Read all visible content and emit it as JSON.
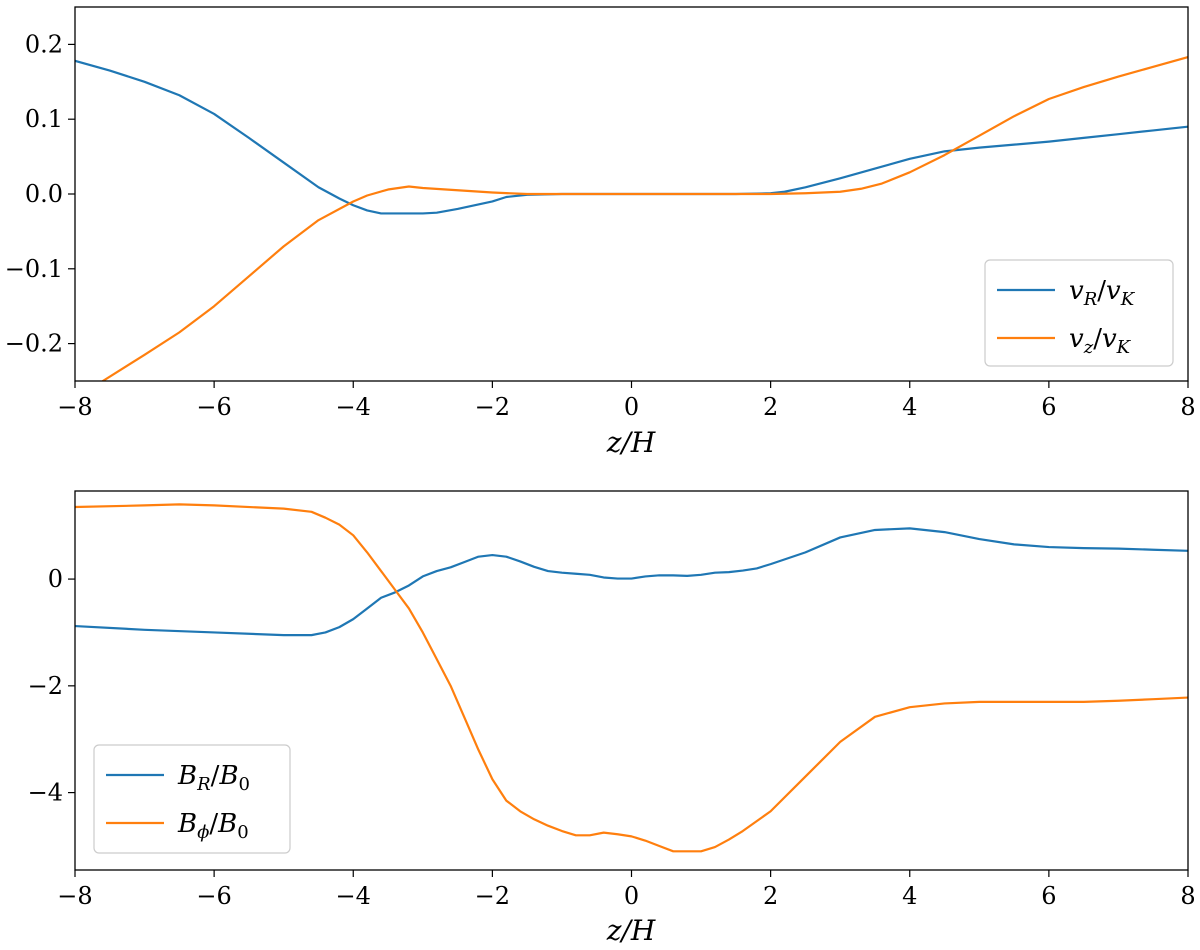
{
  "chart_data": [
    {
      "type": "line",
      "xlabel": "z/H",
      "ylabel": "",
      "xlim": [
        -8,
        8
      ],
      "ylim": [
        -0.25,
        0.25
      ],
      "xticks": [
        -8,
        -6,
        -4,
        -2,
        0,
        2,
        4,
        6,
        8
      ],
      "xtick_labels": [
        "−8",
        "−6",
        "−4",
        "−2",
        "0",
        "2",
        "4",
        "6",
        "8"
      ],
      "yticks": [
        -0.2,
        -0.1,
        0.0,
        0.1,
        0.2
      ],
      "ytick_labels": [
        "−0.2",
        "−0.1",
        "0.0",
        "0.1",
        "0.2"
      ],
      "legend_placement": "lower-right",
      "grid": false,
      "series": [
        {
          "name": "vR/vK",
          "color": "#1f77b4",
          "x": [
            -8,
            -7.5,
            -7,
            -6.5,
            -6,
            -5.5,
            -5,
            -4.5,
            -4.2,
            -4,
            -3.8,
            -3.6,
            -3.4,
            -3.2,
            -3,
            -2.8,
            -2.5,
            -2,
            -1.8,
            -1.5,
            -1,
            -0.5,
            0,
            0.5,
            1,
            1.5,
            2,
            2.2,
            2.5,
            3,
            3.5,
            4,
            4.2,
            4.5,
            5,
            5.5,
            6,
            6.5,
            7,
            7.5,
            8
          ],
          "y": [
            0.178,
            0.165,
            0.15,
            0.132,
            0.107,
            0.075,
            0.042,
            0.009,
            -0.006,
            -0.015,
            -0.022,
            -0.026,
            -0.026,
            -0.026,
            -0.026,
            -0.025,
            -0.02,
            -0.01,
            -0.004,
            -0.001,
            0.0,
            0.0,
            0.0,
            0.0,
            0.0,
            0.0,
            0.001,
            0.003,
            0.009,
            0.021,
            0.034,
            0.047,
            0.051,
            0.057,
            0.062,
            0.066,
            0.07,
            0.075,
            0.08,
            0.085,
            0.09
          ]
        },
        {
          "name": "vz/vK",
          "color": "#ff7f0e",
          "x": [
            -7.6,
            -7,
            -6.5,
            -6,
            -5.5,
            -5,
            -4.5,
            -4,
            -3.8,
            -3.5,
            -3.2,
            -3,
            -2.5,
            -2,
            -1.5,
            -1,
            0,
            1,
            2,
            2.5,
            3,
            3.3,
            3.6,
            4,
            4.5,
            5,
            5.5,
            6,
            6.5,
            7,
            7.5,
            8
          ],
          "y": [
            -0.25,
            -0.215,
            -0.185,
            -0.15,
            -0.11,
            -0.07,
            -0.035,
            -0.01,
            -0.002,
            0.006,
            0.01,
            0.008,
            0.005,
            0.002,
            0.0,
            0.0,
            0.0,
            0.0,
            0.0,
            0.001,
            0.003,
            0.007,
            0.014,
            0.029,
            0.052,
            0.078,
            0.104,
            0.127,
            0.143,
            0.157,
            0.17,
            0.183
          ]
        }
      ]
    },
    {
      "type": "line",
      "xlabel": "z/H",
      "ylabel": "",
      "xlim": [
        -8,
        8
      ],
      "ylim": [
        -5.45,
        1.65
      ],
      "xticks": [
        -8,
        -6,
        -4,
        -2,
        0,
        2,
        4,
        6,
        8
      ],
      "xtick_labels": [
        "−8",
        "−6",
        "−4",
        "−2",
        "0",
        "2",
        "4",
        "6",
        "8"
      ],
      "yticks": [
        -4,
        -2,
        0
      ],
      "ytick_labels": [
        "−4",
        "−2",
        "0"
      ],
      "legend_placement": "lower-left",
      "grid": false,
      "series": [
        {
          "name": "BR/B0",
          "color": "#1f77b4",
          "x": [
            -8,
            -7,
            -6,
            -5,
            -4.6,
            -4.4,
            -4.2,
            -4,
            -3.8,
            -3.6,
            -3.4,
            -3.2,
            -3,
            -2.8,
            -2.6,
            -2.4,
            -2.2,
            -2,
            -1.8,
            -1.6,
            -1.4,
            -1.2,
            -1,
            -0.8,
            -0.6,
            -0.4,
            -0.2,
            0,
            0.2,
            0.4,
            0.6,
            0.8,
            1,
            1.2,
            1.4,
            1.6,
            1.8,
            2,
            2.5,
            3,
            3.5,
            4,
            4.5,
            5,
            5.5,
            6,
            6.5,
            7,
            7.5,
            8
          ],
          "y": [
            -0.88,
            -0.95,
            -1.0,
            -1.05,
            -1.05,
            -1.0,
            -0.9,
            -0.75,
            -0.55,
            -0.35,
            -0.25,
            -0.12,
            0.05,
            0.15,
            0.22,
            0.32,
            0.42,
            0.45,
            0.42,
            0.33,
            0.23,
            0.15,
            0.12,
            0.1,
            0.08,
            0.03,
            0.01,
            0.01,
            0.05,
            0.07,
            0.07,
            0.06,
            0.08,
            0.12,
            0.13,
            0.16,
            0.2,
            0.28,
            0.5,
            0.78,
            0.92,
            0.95,
            0.88,
            0.75,
            0.65,
            0.6,
            0.58,
            0.57,
            0.55,
            0.53
          ]
        },
        {
          "name": "Bφ/B0",
          "color": "#ff7f0e",
          "x": [
            -8,
            -7,
            -6.5,
            -6,
            -5,
            -4.6,
            -4.4,
            -4.2,
            -4,
            -3.8,
            -3.6,
            -3.4,
            -3.2,
            -3,
            -2.8,
            -2.6,
            -2.4,
            -2.2,
            -2,
            -1.8,
            -1.6,
            -1.4,
            -1.2,
            -1,
            -0.8,
            -0.6,
            -0.4,
            -0.2,
            0,
            0.2,
            0.4,
            0.6,
            0.8,
            1,
            1.2,
            1.4,
            1.6,
            2,
            2.5,
            3,
            3.5,
            4,
            4.5,
            5,
            5.5,
            6,
            6.5,
            7,
            7.5,
            8
          ],
          "y": [
            1.35,
            1.38,
            1.4,
            1.38,
            1.32,
            1.26,
            1.15,
            1.02,
            0.82,
            0.5,
            0.15,
            -0.2,
            -0.55,
            -1.0,
            -1.5,
            -2.0,
            -2.6,
            -3.2,
            -3.75,
            -4.15,
            -4.35,
            -4.5,
            -4.62,
            -4.72,
            -4.8,
            -4.8,
            -4.75,
            -4.78,
            -4.82,
            -4.9,
            -5.0,
            -5.1,
            -5.1,
            -5.1,
            -5.02,
            -4.88,
            -4.72,
            -4.35,
            -3.7,
            -3.05,
            -2.58,
            -2.4,
            -2.33,
            -2.3,
            -2.3,
            -2.3,
            -2.3,
            -2.28,
            -2.25,
            -2.22
          ]
        }
      ]
    }
  ],
  "legends": {
    "top": [
      {
        "var": "v",
        "sub": "R",
        "den_var": "v",
        "den_sub": "K",
        "color": "#1f77b4"
      },
      {
        "var": "v",
        "sub": "z",
        "den_var": "v",
        "den_sub": "K",
        "color": "#ff7f0e"
      }
    ],
    "bottom": [
      {
        "var": "B",
        "sub": "R",
        "den_var": "B",
        "den_sub": "0",
        "color": "#1f77b4"
      },
      {
        "var": "B",
        "sub": "ϕ",
        "den_var": "B",
        "den_sub": "0",
        "color": "#ff7f0e"
      }
    ]
  }
}
